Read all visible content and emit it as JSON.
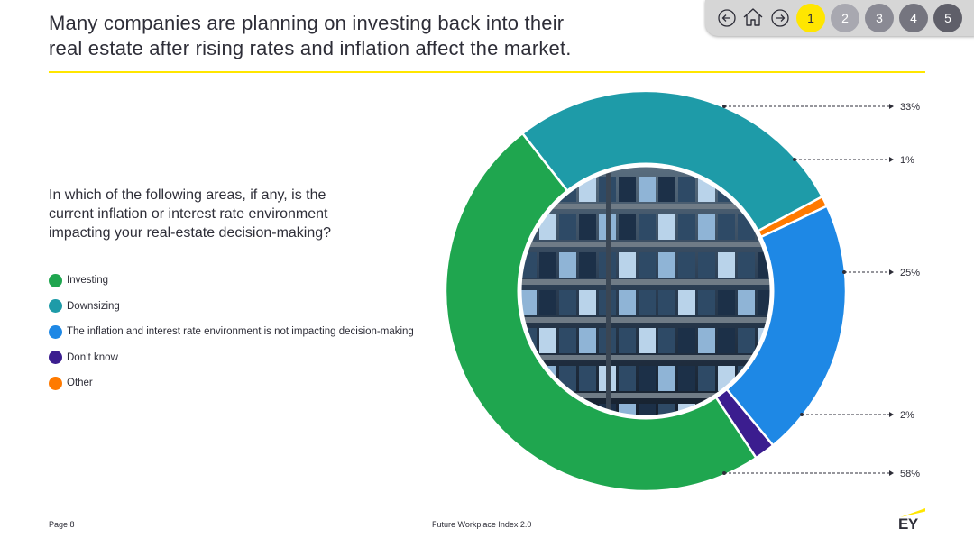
{
  "header": {
    "title": "Many companies are planning on investing back into their\nreal estate after rising rates and inflation affect the market."
  },
  "nav": {
    "back_icon": "arrow-left-icon",
    "home_icon": "home-icon",
    "forward_icon": "arrow-right-icon",
    "pages": [
      "1",
      "2",
      "3",
      "4",
      "5"
    ],
    "active_page": "1"
  },
  "question": "In which of the following areas, if any, is the\ncurrent inflation or interest rate environment\nimpacting your real-estate decision-making?",
  "legend": [
    {
      "label": "Investing",
      "color": "#1fa64f"
    },
    {
      "label": "Downsizing",
      "color": "#1e9ba8"
    },
    {
      "label": "The inflation and interest rate environment is not impacting decision-making",
      "color": "#1e88e5"
    },
    {
      "label": "Don’t know",
      "color": "#3b1d8f"
    },
    {
      "label": "Other",
      "color": "#ff7a00"
    }
  ],
  "chart_data": {
    "type": "pie",
    "subtype": "donut",
    "title": "",
    "slices": [
      {
        "name": "Downsizing",
        "value": 33,
        "label": "33%",
        "color": "#1e9ba8"
      },
      {
        "name": "Other",
        "value": 1,
        "label": "1%",
        "color": "#ff7a00"
      },
      {
        "name": "The inflation and interest rate environment is not impacting decision-making",
        "value": 25,
        "label": "25%",
        "color": "#1e88e5"
      },
      {
        "name": "Don’t know",
        "value": 2,
        "label": "2%",
        "color": "#3b1d8f"
      },
      {
        "name": "Investing",
        "value": 58,
        "label": "58%",
        "color": "#1fa64f"
      }
    ],
    "center_image": "office-building-night-photo"
  },
  "footer": {
    "page": "Page 8",
    "center": "Future Workplace Index 2.0",
    "logo": "EY"
  },
  "colors": {
    "accent": "#ffe600",
    "text": "#2e2e38"
  }
}
